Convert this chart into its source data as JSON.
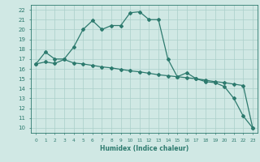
{
  "title": "",
  "xlabel": "Humidex (Indice chaleur)",
  "xlim": [
    -0.5,
    23.5
  ],
  "ylim": [
    9.5,
    22.5
  ],
  "yticks": [
    10,
    11,
    12,
    13,
    14,
    15,
    16,
    17,
    18,
    19,
    20,
    21,
    22
  ],
  "xticks": [
    0,
    1,
    2,
    3,
    4,
    5,
    6,
    7,
    8,
    9,
    10,
    11,
    12,
    13,
    14,
    15,
    16,
    17,
    18,
    19,
    20,
    21,
    22,
    23
  ],
  "line1_x": [
    0,
    1,
    2,
    3,
    4,
    5,
    6,
    7,
    8,
    9,
    10,
    11,
    12,
    13,
    14,
    15,
    16,
    17,
    18,
    19,
    20,
    21,
    22,
    23
  ],
  "line1_y": [
    16.5,
    17.7,
    17.0,
    17.0,
    18.2,
    20.0,
    20.9,
    20.0,
    20.4,
    20.4,
    21.7,
    21.8,
    21.0,
    21.0,
    17.0,
    15.2,
    15.6,
    15.0,
    14.7,
    14.6,
    14.2,
    13.0,
    11.2,
    10.0
  ],
  "line2_x": [
    0,
    1,
    2,
    3,
    4,
    5,
    6,
    7,
    8,
    9,
    10,
    11,
    12,
    13,
    14,
    15,
    16,
    17,
    18,
    19,
    20,
    21,
    22,
    23
  ],
  "line2_y": [
    16.5,
    16.7,
    16.55,
    16.95,
    16.6,
    16.5,
    16.35,
    16.2,
    16.1,
    15.95,
    15.8,
    15.7,
    15.55,
    15.4,
    15.3,
    15.2,
    15.1,
    15.0,
    14.85,
    14.7,
    14.6,
    14.45,
    14.3,
    10.0
  ],
  "line_color": "#2d7a6e",
  "bg_color": "#d0e8e4",
  "grid_color": "#aacfc9",
  "spine_color": "#2d7a6e"
}
